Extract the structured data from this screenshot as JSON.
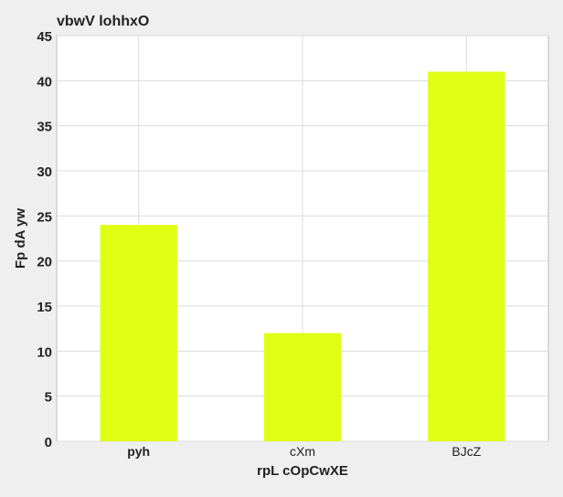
{
  "chart_data": {
    "type": "bar",
    "title": "vbwV lohhxO",
    "xlabel": "rpL cOpCwXE",
    "ylabel": "Fp dA yw",
    "categories": [
      "pyh",
      "cXm",
      "BJcZ"
    ],
    "values": [
      24,
      12,
      41
    ],
    "ylim": [
      0,
      45
    ],
    "yticks": [
      0,
      5,
      10,
      15,
      20,
      25,
      30,
      35,
      40,
      45
    ],
    "grid": true,
    "legend": "none",
    "colors": {
      "bar": "#dfff14",
      "plot_background": "#ffffff",
      "page_background": "#efefef",
      "grid": "#dcdcdc",
      "axis": "#bdbdbd",
      "text": "#222222"
    }
  }
}
